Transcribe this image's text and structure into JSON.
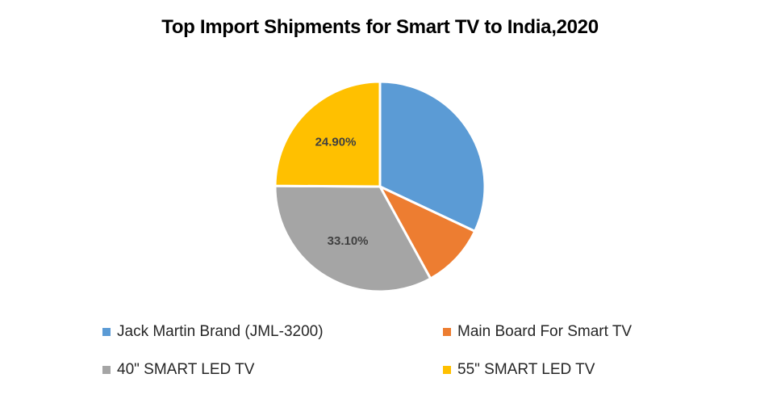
{
  "chart_data": {
    "type": "pie",
    "title": "Top Import Shipments for Smart TV to India,2020",
    "categories": [
      "Jack Martin Brand (JML-3200)",
      "Main Board For Smart TV",
      "40\" SMART LED TV",
      "55\" SMART LED TV"
    ],
    "values": [
      32.0,
      10.0,
      33.1,
      24.9
    ],
    "data_labels": [
      "",
      "",
      "33.10%",
      "24.90%"
    ],
    "colors": [
      "#5B9BD5",
      "#ED7D31",
      "#A5A5A5",
      "#FFC000"
    ],
    "legend_position": "bottom",
    "start_angle": "top, clockwise"
  }
}
